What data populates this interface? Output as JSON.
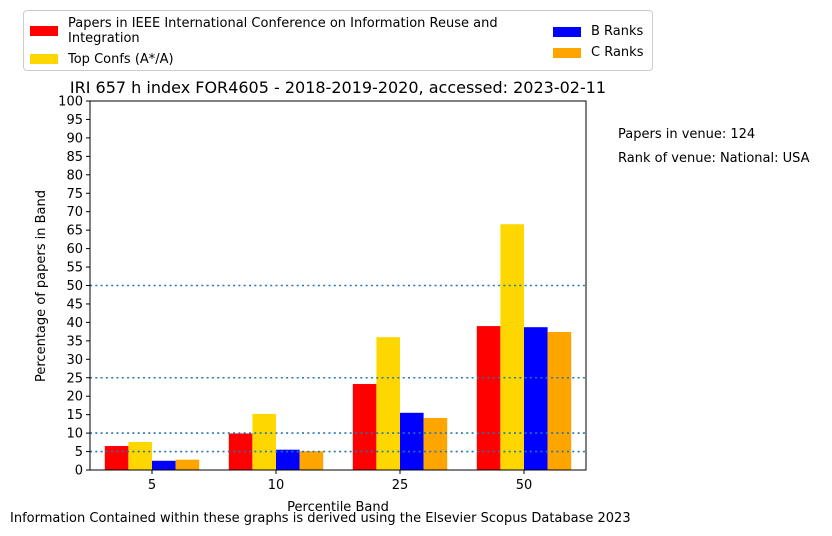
{
  "chart_data": {
    "type": "bar",
    "title": "IRI 657 h index FOR4605 - 2018-2019-2020, accessed: 2023-02-11",
    "xlabel": "Percentile Band",
    "ylabel": "Percentage of papers in Band",
    "categories": [
      "5",
      "10",
      "25",
      "50"
    ],
    "ylim": [
      0,
      100
    ],
    "yticks": [
      0,
      5,
      10,
      15,
      20,
      25,
      30,
      35,
      40,
      45,
      50,
      55,
      60,
      65,
      70,
      75,
      80,
      85,
      90,
      95,
      100
    ],
    "reference_lines": [
      5,
      10,
      25,
      50
    ],
    "legend_placement": "above-plot",
    "series": [
      {
        "name": "Papers in IEEE International Conference on Information Reuse and Integration",
        "color": "#ff0000",
        "values": [
          6.5,
          9.9,
          23.3,
          39.0
        ]
      },
      {
        "name": "Top Confs (A*/A)",
        "color": "#ffd700",
        "values": [
          7.6,
          15.2,
          36.0,
          66.6
        ]
      },
      {
        "name": "B Ranks",
        "color": "#0000ff",
        "values": [
          2.5,
          5.5,
          15.5,
          38.7
        ]
      },
      {
        "name": "C Ranks",
        "color": "#ffa500",
        "values": [
          2.8,
          5.1,
          14.1,
          37.4
        ]
      }
    ]
  },
  "legend": {
    "items": [
      {
        "label": "Papers in IEEE International Conference on Information Reuse and Integration",
        "color": "#ff0000"
      },
      {
        "label": "Top Confs (A*/A)",
        "color": "#ffd700"
      },
      {
        "label": "B Ranks",
        "color": "#0000ff"
      },
      {
        "label": "C Ranks",
        "color": "#ffa500"
      }
    ]
  },
  "notes": {
    "papers_in_venue": "Papers in venue: 124",
    "rank_of_venue": "Rank of venue: National: USA"
  },
  "footer": "Information Contained within these graphs is derived using the Elsevier Scopus Database 2023"
}
